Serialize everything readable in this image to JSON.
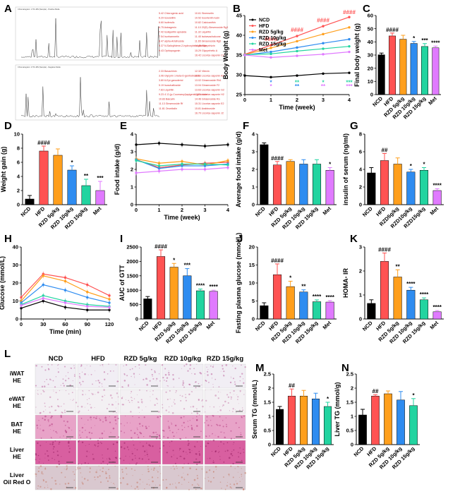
{
  "panel_letters": [
    "A",
    "B",
    "C",
    "D",
    "E",
    "F",
    "G",
    "H",
    "I",
    "J",
    "K",
    "L",
    "M",
    "N"
  ],
  "colors": {
    "NCD": "#000000",
    "HFD": "#ff5252",
    "RZD5": "#ff9f1c",
    "RZD10": "#2e8cf0",
    "RZD15": "#22d4a0",
    "Met": "#e07aff"
  },
  "chromatogram": {
    "header_top": "Chromatogram: 1 TIC-MS (Sample) - Positive Mode",
    "header_bottom": "Chromatogram: 2 TIC-MS (Sample) - Negative Mode",
    "top_compounds_col1": [
      "5.42 Chlorogenic acid",
      "6.29 Isovanillin",
      "6.60 Isoferulic",
      "6.75 Astragenin",
      "7.42 Isoliquiritin apioside",
      "7.54 Isorhamnetin",
      "8.47 alpha-Artelhoside",
      "9.37 N-Salicylidene-2-hydroxybenzylamide",
      "9.43 Ophiopogonin"
    ],
    "top_compounds_col2": [
      "10.61 Sinensetin",
      "10.52 Isoorientin-lucin",
      "10.82 Calcicanthin",
      "11.10 20(S)-Ginsenoside Rg3",
      "11.32 Liquiritin",
      "11.45 Isobavachalcone",
      "11.65 Ginsenoside Rg6",
      "14.48 Glycyrrhizin",
      "15.29 Glycyrrhetic A",
      "16.42 Licorice-saponin C2"
    ],
    "bottom_compounds_col1": [
      "2.33 Bavachinin",
      "3.06 Glycyrin 1-beta-D-gentiobioside",
      "3.80 6-Epi-ganoderiol",
      "5.19 Isoschaftoside",
      "7.83 Liquiritin",
      "9.23 4'-O-(p-Coumaroyl)apigenin-glucoside",
      "10.83 Baicalin",
      "11.13 Ginsenoside Rf",
      "11.81 Ononitalin"
    ],
    "bottom_compounds_col2": [
      "12.32 Vitexin",
      "12.53 Licorice-saponin A3",
      "13.02 Ginsenoside Rb1",
      "13.04 Ginsenoside F2",
      "13.63 Licorice-saponin G2",
      "13.71 Licorice-saponin H2",
      "14.46 Ginsenoside Ro",
      "15.31 Licorice-saponin E2",
      "15.81 Arabinoside",
      "16.70 Licorice-saponin J2"
    ]
  },
  "chart_data": [
    {
      "id": "B",
      "type": "line",
      "title": "",
      "xlabel": "Time (week)",
      "ylabel": "Body Weight (g)",
      "x": [
        0,
        1,
        2,
        3,
        4
      ],
      "xlim": [
        0,
        4
      ],
      "ylim": [
        25,
        45
      ],
      "xticks": [
        0,
        1,
        2,
        3,
        4
      ],
      "yticks": [
        25,
        30,
        35,
        40,
        45
      ],
      "series": [
        {
          "name": "NCD",
          "color": "#000000",
          "values": [
            29.8,
            29.4,
            29.8,
            30.3,
            30.5
          ]
        },
        {
          "name": "HFD",
          "color": "#ff5252",
          "values": [
            35.2,
            37.5,
            39.8,
            42.3,
            44.6
          ]
        },
        {
          "name": "RZD 5g/kg",
          "color": "#ff9f1c",
          "values": [
            35.1,
            36.8,
            38.5,
            40.3,
            42.0
          ]
        },
        {
          "name": "RZD 10g/kg",
          "color": "#2e8cf0",
          "values": [
            35.0,
            35.8,
            36.9,
            38.0,
            39.0
          ]
        },
        {
          "name": "RZD 15g/kg",
          "color": "#22d4a0",
          "values": [
            35.1,
            35.3,
            36.0,
            36.6,
            37.2
          ]
        },
        {
          "name": "Met",
          "color": "#e07aff",
          "values": [
            35.0,
            34.4,
            34.8,
            35.2,
            35.8
          ]
        }
      ],
      "annotations": [
        {
          "text": "####",
          "color": "#ff5252",
          "x": 1,
          "y": 38.6
        },
        {
          "text": "####",
          "color": "#ff5252",
          "x": 2,
          "y": 40.9
        },
        {
          "text": "####",
          "color": "#ff5252",
          "x": 3,
          "y": 43.3
        },
        {
          "text": "####",
          "color": "#ff5252",
          "x": 4,
          "y": 45.4
        },
        {
          "text": "*",
          "color": "#2e8cf0",
          "x": 1,
          "y": 27.6
        },
        {
          "text": "*",
          "color": "#e07aff",
          "x": 1,
          "y": 26.6
        },
        {
          "text": "**",
          "color": "#22d4a0",
          "x": 2,
          "y": 27.6
        },
        {
          "text": "**",
          "color": "#2e8cf0",
          "x": 2,
          "y": 26.6
        },
        {
          "text": "*",
          "color": "#22d4a0",
          "x": 3,
          "y": 27.6
        },
        {
          "text": "**",
          "color": "#e07aff",
          "x": 3,
          "y": 26.6
        },
        {
          "text": "***",
          "color": "#22d4a0",
          "x": 4,
          "y": 27.6
        },
        {
          "text": "***",
          "color": "#e07aff",
          "x": 4,
          "y": 26.6
        }
      ],
      "legend": "top-left"
    },
    {
      "id": "C",
      "type": "bar",
      "ylabel": "Final body weight (g)",
      "categories": [
        "NCD",
        "HFD",
        "RZD 5g/kg",
        "RZD 10g/kg",
        "RZD 15g/kg",
        "Met"
      ],
      "values": [
        30.2,
        44.5,
        42.0,
        38.8,
        36.5,
        35.5
      ],
      "errors": [
        1.3,
        2.2,
        3.0,
        1.5,
        2.2,
        1.3
      ],
      "ylim": [
        0,
        60
      ],
      "yticks": [
        0,
        10,
        20,
        30,
        40,
        50,
        60
      ],
      "sig": [
        "",
        "####",
        "",
        "*",
        "***",
        "****"
      ]
    },
    {
      "id": "D",
      "type": "bar",
      "ylabel": "Weight gain (g)",
      "categories": [
        "NCD",
        "HFD",
        "RZD 5g/kg",
        "RZD 10g/kg",
        "RZD 15g/kg",
        "Met"
      ],
      "values": [
        0.8,
        7.6,
        7.0,
        4.9,
        2.7,
        2.0
      ],
      "errors": [
        0.5,
        0.7,
        0.9,
        0.6,
        0.9,
        1.3
      ],
      "ylim": [
        0,
        10
      ],
      "yticks": [
        0,
        2,
        4,
        6,
        8,
        10
      ],
      "sig": [
        "",
        "####",
        "",
        "*",
        "**",
        "***"
      ]
    },
    {
      "id": "E",
      "type": "line",
      "xlabel": "Time (week)",
      "ylabel": "Food intake (g/d)",
      "x": [
        0,
        1,
        2,
        3,
        4
      ],
      "xlim": [
        0,
        4
      ],
      "ylim": [
        0,
        4
      ],
      "xticks": [
        0,
        1,
        2,
        3,
        4
      ],
      "yticks": [
        0,
        1,
        2,
        3,
        4
      ],
      "series": [
        {
          "name": "NCD",
          "color": "#000000",
          "values": [
            3.4,
            3.48,
            3.4,
            3.32,
            3.4
          ]
        },
        {
          "name": "HFD",
          "color": "#ff5252",
          "values": [
            2.55,
            2.1,
            2.25,
            2.35,
            2.4
          ]
        },
        {
          "name": "RZD 5g/kg",
          "color": "#ff9f1c",
          "values": [
            2.6,
            2.35,
            2.45,
            2.25,
            2.5
          ]
        },
        {
          "name": "RZD 10g/kg",
          "color": "#2e8cf0",
          "values": [
            2.55,
            2.05,
            2.2,
            2.2,
            2.3
          ]
        },
        {
          "name": "RZD 15g/kg",
          "color": "#22d4a0",
          "values": [
            2.5,
            2.2,
            2.3,
            2.3,
            2.25
          ]
        },
        {
          "name": "Met",
          "color": "#e07aff",
          "values": [
            1.8,
            1.9,
            2.0,
            2.0,
            2.1
          ]
        }
      ]
    },
    {
      "id": "F",
      "type": "bar",
      "ylabel": "Average food intake (g/d)",
      "categories": [
        "NCD",
        "HFD",
        "RZD 5g/kg",
        "RZD 10g/kg",
        "RZD 15g/kg",
        "Met"
      ],
      "values": [
        3.4,
        2.25,
        2.45,
        2.3,
        2.3,
        1.95
      ],
      "errors": [
        0.1,
        0.2,
        0.1,
        0.25,
        0.25,
        0.15
      ],
      "ylim": [
        0,
        4
      ],
      "yticks": [
        0,
        1,
        2,
        3,
        4
      ],
      "sig": [
        "",
        "####",
        "",
        "",
        "",
        "*"
      ]
    },
    {
      "id": "G",
      "type": "bar",
      "ylabel": "insulin of serum (ng/ml)",
      "categories": [
        "NCD",
        "HFD",
        "RZD5g/kg",
        "RZD10g/kg",
        "RZD15g/kg",
        "Met"
      ],
      "values": [
        3.6,
        5.0,
        4.6,
        3.7,
        3.9,
        1.6
      ],
      "errors": [
        0.6,
        0.8,
        0.7,
        0.3,
        0.3,
        0.2
      ],
      "ylim": [
        0,
        8
      ],
      "yticks": [
        0,
        2,
        4,
        6,
        8
      ],
      "sig": [
        "",
        "##",
        "",
        "*",
        "*",
        "****"
      ]
    },
    {
      "id": "H",
      "type": "line",
      "xlabel": "Time (min)",
      "ylabel": "Glucose (mmol/L)",
      "x": [
        0,
        30,
        60,
        90,
        120
      ],
      "xlim": [
        0,
        120
      ],
      "ylim": [
        0,
        40
      ],
      "xticks": [
        0,
        30,
        60,
        90,
        120
      ],
      "yticks": [
        0,
        10,
        20,
        30,
        40
      ],
      "series": [
        {
          "name": "NCD",
          "color": "#000000",
          "values": [
            6.0,
            10.0,
            6.5,
            5.0,
            5.0
          ]
        },
        {
          "name": "HFD",
          "color": "#ff5252",
          "values": [
            12.0,
            25.0,
            23.0,
            19.0,
            13.0
          ]
        },
        {
          "name": "RZD 5g/kg",
          "color": "#ff9f1c",
          "values": [
            10.0,
            24.0,
            21.0,
            15.0,
            11.0
          ]
        },
        {
          "name": "RZD 10g/kg",
          "color": "#2e8cf0",
          "values": [
            9.0,
            19.0,
            16.0,
            12.0,
            9.0
          ]
        },
        {
          "name": "RZD 15g/kg",
          "color": "#22d4a0",
          "values": [
            8.0,
            13.0,
            10.0,
            8.0,
            7.0
          ]
        },
        {
          "name": "Met",
          "color": "#e07aff",
          "values": [
            7.5,
            11.5,
            9.0,
            7.0,
            6.5
          ]
        }
      ]
    },
    {
      "id": "I",
      "type": "bar",
      "ylabel": "AUC of GTT",
      "categories": [
        "NCD",
        "HFD",
        "RZD 5g/kg",
        "RZD 10g/kg",
        "RZD 15g/kg",
        "Met"
      ],
      "values": [
        700,
        2170,
        1800,
        1500,
        980,
        960
      ],
      "errors": [
        80,
        230,
        130,
        250,
        60,
        40
      ],
      "ylim": [
        0,
        2500
      ],
      "yticks": [
        0,
        500,
        1000,
        1500,
        2000,
        2500
      ],
      "sig": [
        "",
        "####",
        "*",
        "***",
        "****",
        "****"
      ]
    },
    {
      "id": "J",
      "type": "bar",
      "ylabel": "Fasting plasma glucose (mmol/L)",
      "categories": [
        "NCD",
        "HFD",
        "RZD 5g/kg",
        "RZD 10g/kg",
        "RZD 15g/kg",
        "Met"
      ],
      "values": [
        3.7,
        12.3,
        9.0,
        7.5,
        4.8,
        4.7
      ],
      "errors": [
        0.8,
        3.0,
        1.5,
        0.6,
        0.5,
        0.4
      ],
      "ylim": [
        0,
        20
      ],
      "yticks": [
        0,
        5,
        10,
        15,
        20
      ],
      "sig": [
        "",
        "####",
        "*",
        "**",
        "****",
        "****"
      ]
    },
    {
      "id": "K",
      "type": "bar",
      "ylabel": "HOMA- IR",
      "categories": [
        "NCD",
        "HFD",
        "RZD 5g/kg",
        "RZD 10g/kg",
        "RZD 15g/kg",
        "Met"
      ],
      "values": [
        0.65,
        2.4,
        1.75,
        1.2,
        0.8,
        0.3
      ],
      "errors": [
        0.15,
        0.35,
        0.3,
        0.12,
        0.08,
        0.05
      ],
      "ylim": [
        0,
        3
      ],
      "yticks": [
        0,
        1,
        2,
        3
      ],
      "sig": [
        "",
        "####",
        "**",
        "****",
        "****",
        "****"
      ]
    },
    {
      "id": "M",
      "type": "bar",
      "ylabel": "Serum TG (mmol/L)",
      "categories": [
        "NCD",
        "HFD",
        "RZD 5g/kg",
        "RZD 10g/kg",
        "RZD 15g/kg"
      ],
      "values": [
        1.25,
        1.72,
        1.72,
        1.62,
        1.35
      ],
      "errors": [
        0.1,
        0.25,
        0.2,
        0.2,
        0.15
      ],
      "ylim": [
        0,
        2.5
      ],
      "yticks": [
        0,
        0.5,
        1.0,
        1.5,
        2.0,
        2.5
      ],
      "sig": [
        "",
        "##",
        "",
        "",
        "*"
      ]
    },
    {
      "id": "N",
      "type": "bar",
      "ylabel": "Liver TG (mmol/g)",
      "categories": [
        "NCD",
        "HFD",
        "RZD 5g/kg",
        "RZD 10g/kg",
        "RZD 15g/kg"
      ],
      "values": [
        1.05,
        1.72,
        1.8,
        1.58,
        1.38
      ],
      "errors": [
        0.2,
        0.05,
        0.1,
        0.3,
        0.25
      ],
      "ylim": [
        0,
        2.5
      ],
      "yticks": [
        0,
        0.5,
        1.0,
        1.5,
        2.0,
        2.5
      ],
      "sig": [
        "",
        "##",
        "",
        "",
        "*"
      ]
    }
  ],
  "histology": {
    "columns": [
      "NCD",
      "HFD",
      "RZD 5g/kg",
      "RZD 10g/kg",
      "RZD 15g/kg"
    ],
    "rows": [
      {
        "line1": "iWAT",
        "line2": "HE",
        "tone": "#f1eef4",
        "dots": "#b2478c"
      },
      {
        "line1": "eWAT",
        "line2": "HE",
        "tone": "#f3f0f3",
        "dots": "#c06aa0"
      },
      {
        "line1": "BAT",
        "line2": "HE",
        "tone": "#e8a3c8",
        "dots": "#a8236f"
      },
      {
        "line1": "Liver",
        "line2": "HE",
        "tone": "#d85fa0",
        "dots": "#8c1456"
      },
      {
        "line1": "Liver",
        "line2": "Oil Red O",
        "tone": "#d9c8cf",
        "dots": "#c26a52"
      }
    ]
  }
}
